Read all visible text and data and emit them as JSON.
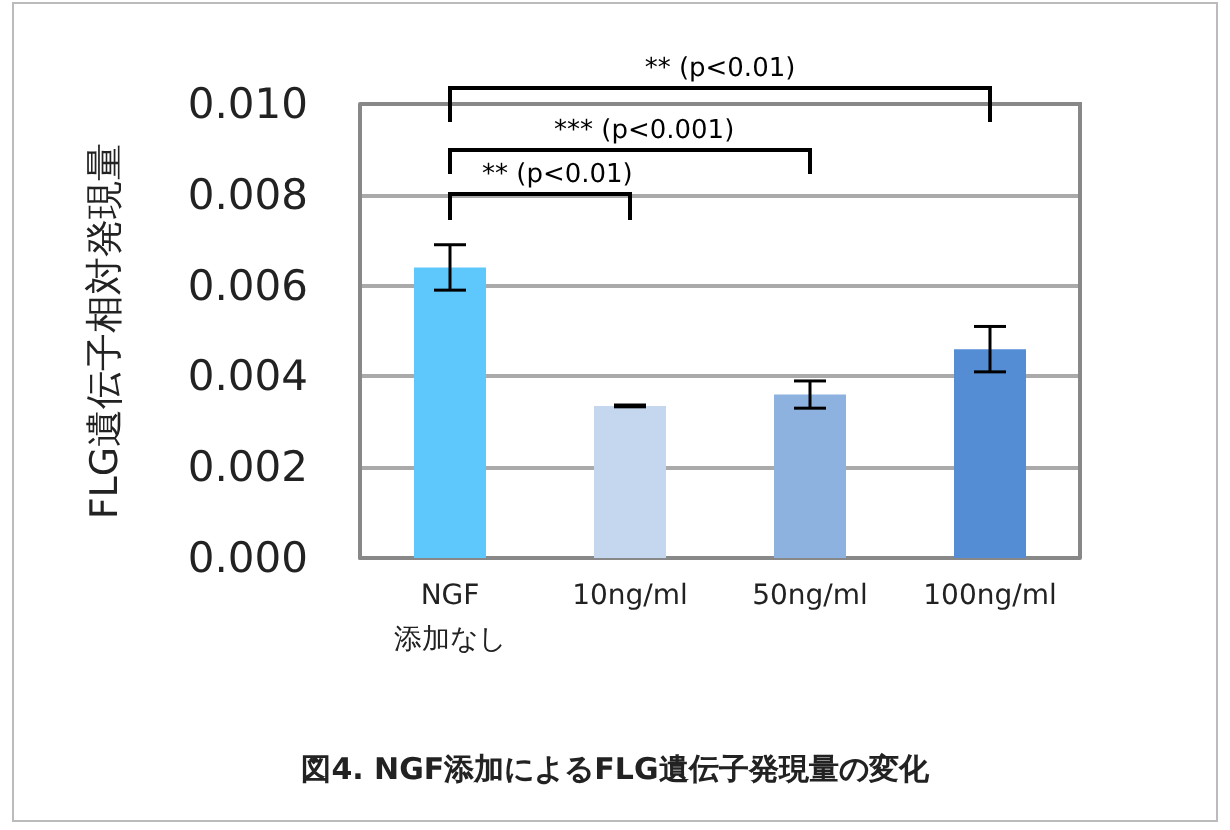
{
  "chart_data": {
    "type": "bar",
    "title": "図4. NGF添加によるFLG遺伝子発現量の変化",
    "ylabel": "FLG遺伝子相対発現量",
    "categories": [
      "NGF\n添加なし",
      "10ng/ml",
      "50ng/ml",
      "100ng/ml"
    ],
    "values": [
      0.0064,
      0.00335,
      0.0036,
      0.0046
    ],
    "errors": [
      0.0005,
      2e-05,
      0.0003,
      0.0005
    ],
    "colors": [
      "#5ec8fd",
      "#c5d7ee",
      "#8eb2e0",
      "#548dd4"
    ],
    "ylim": [
      0,
      0.01
    ],
    "yticks": [
      {
        "value": 0,
        "label": "0.000"
      },
      0.002,
      0.004,
      0.006,
      0.008,
      {
        "value": 0.01,
        "label": "0.010"
      }
    ],
    "grid": "y",
    "annotations": [
      "** (p<0.01)",
      "*** (p<0.001)",
      "** (p<0.01)"
    ]
  }
}
